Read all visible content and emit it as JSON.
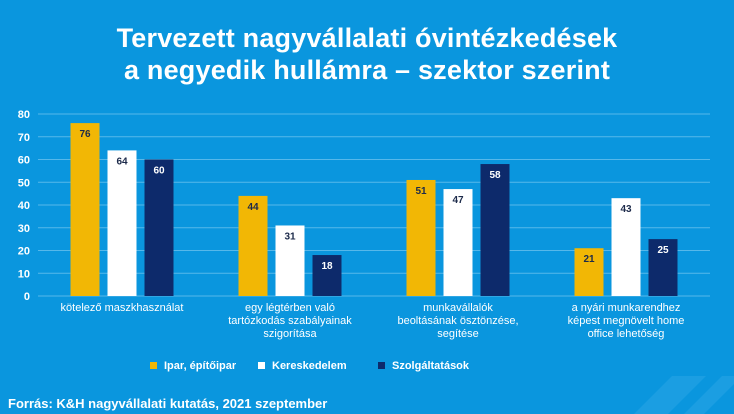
{
  "chart_data": {
    "type": "bar",
    "title": "Tervezett nagyvállalati óvintézkedések a negyedik hullámra – szektor szerint",
    "title_lines": [
      "Tervezett nagyvállalati óvintézkedések",
      "a negyedik hullámra – szektor szerint"
    ],
    "categories": [
      [
        "kötelező maszkhasználat"
      ],
      [
        "egy légtérben való",
        "tartózkodás szabályainak",
        "szigorítása"
      ],
      [
        "munkavállalók",
        "beoltásának ösztönzése,",
        "segítése"
      ],
      [
        "a nyári munkarendhez",
        "képest megnövelt home",
        "office lehetőség"
      ]
    ],
    "series": [
      {
        "name": "Ipar, építőipar",
        "values": [
          76,
          44,
          51,
          21
        ],
        "color": "#f2b705",
        "label_color": "#1c2a4a"
      },
      {
        "name": "Kereskedelem",
        "values": [
          64,
          31,
          47,
          43
        ],
        "color": "#ffffff",
        "label_color": "#1c2a4a"
      },
      {
        "name": "Szolgáltatások",
        "values": [
          60,
          18,
          58,
          25
        ],
        "color": "#0d2a6b",
        "label_color": "#ffffff"
      }
    ],
    "ylim": [
      0,
      80
    ],
    "yticks": [
      0,
      10,
      20,
      30,
      40,
      50,
      60,
      70,
      80
    ],
    "grid": true,
    "legend_position": "bottom"
  },
  "footer": {
    "source": "Forrás: K&H nagyvállalati kutatás, 2021 szeptember"
  },
  "colors": {
    "background": "#0a96de",
    "gridline": "#56b8ea"
  }
}
